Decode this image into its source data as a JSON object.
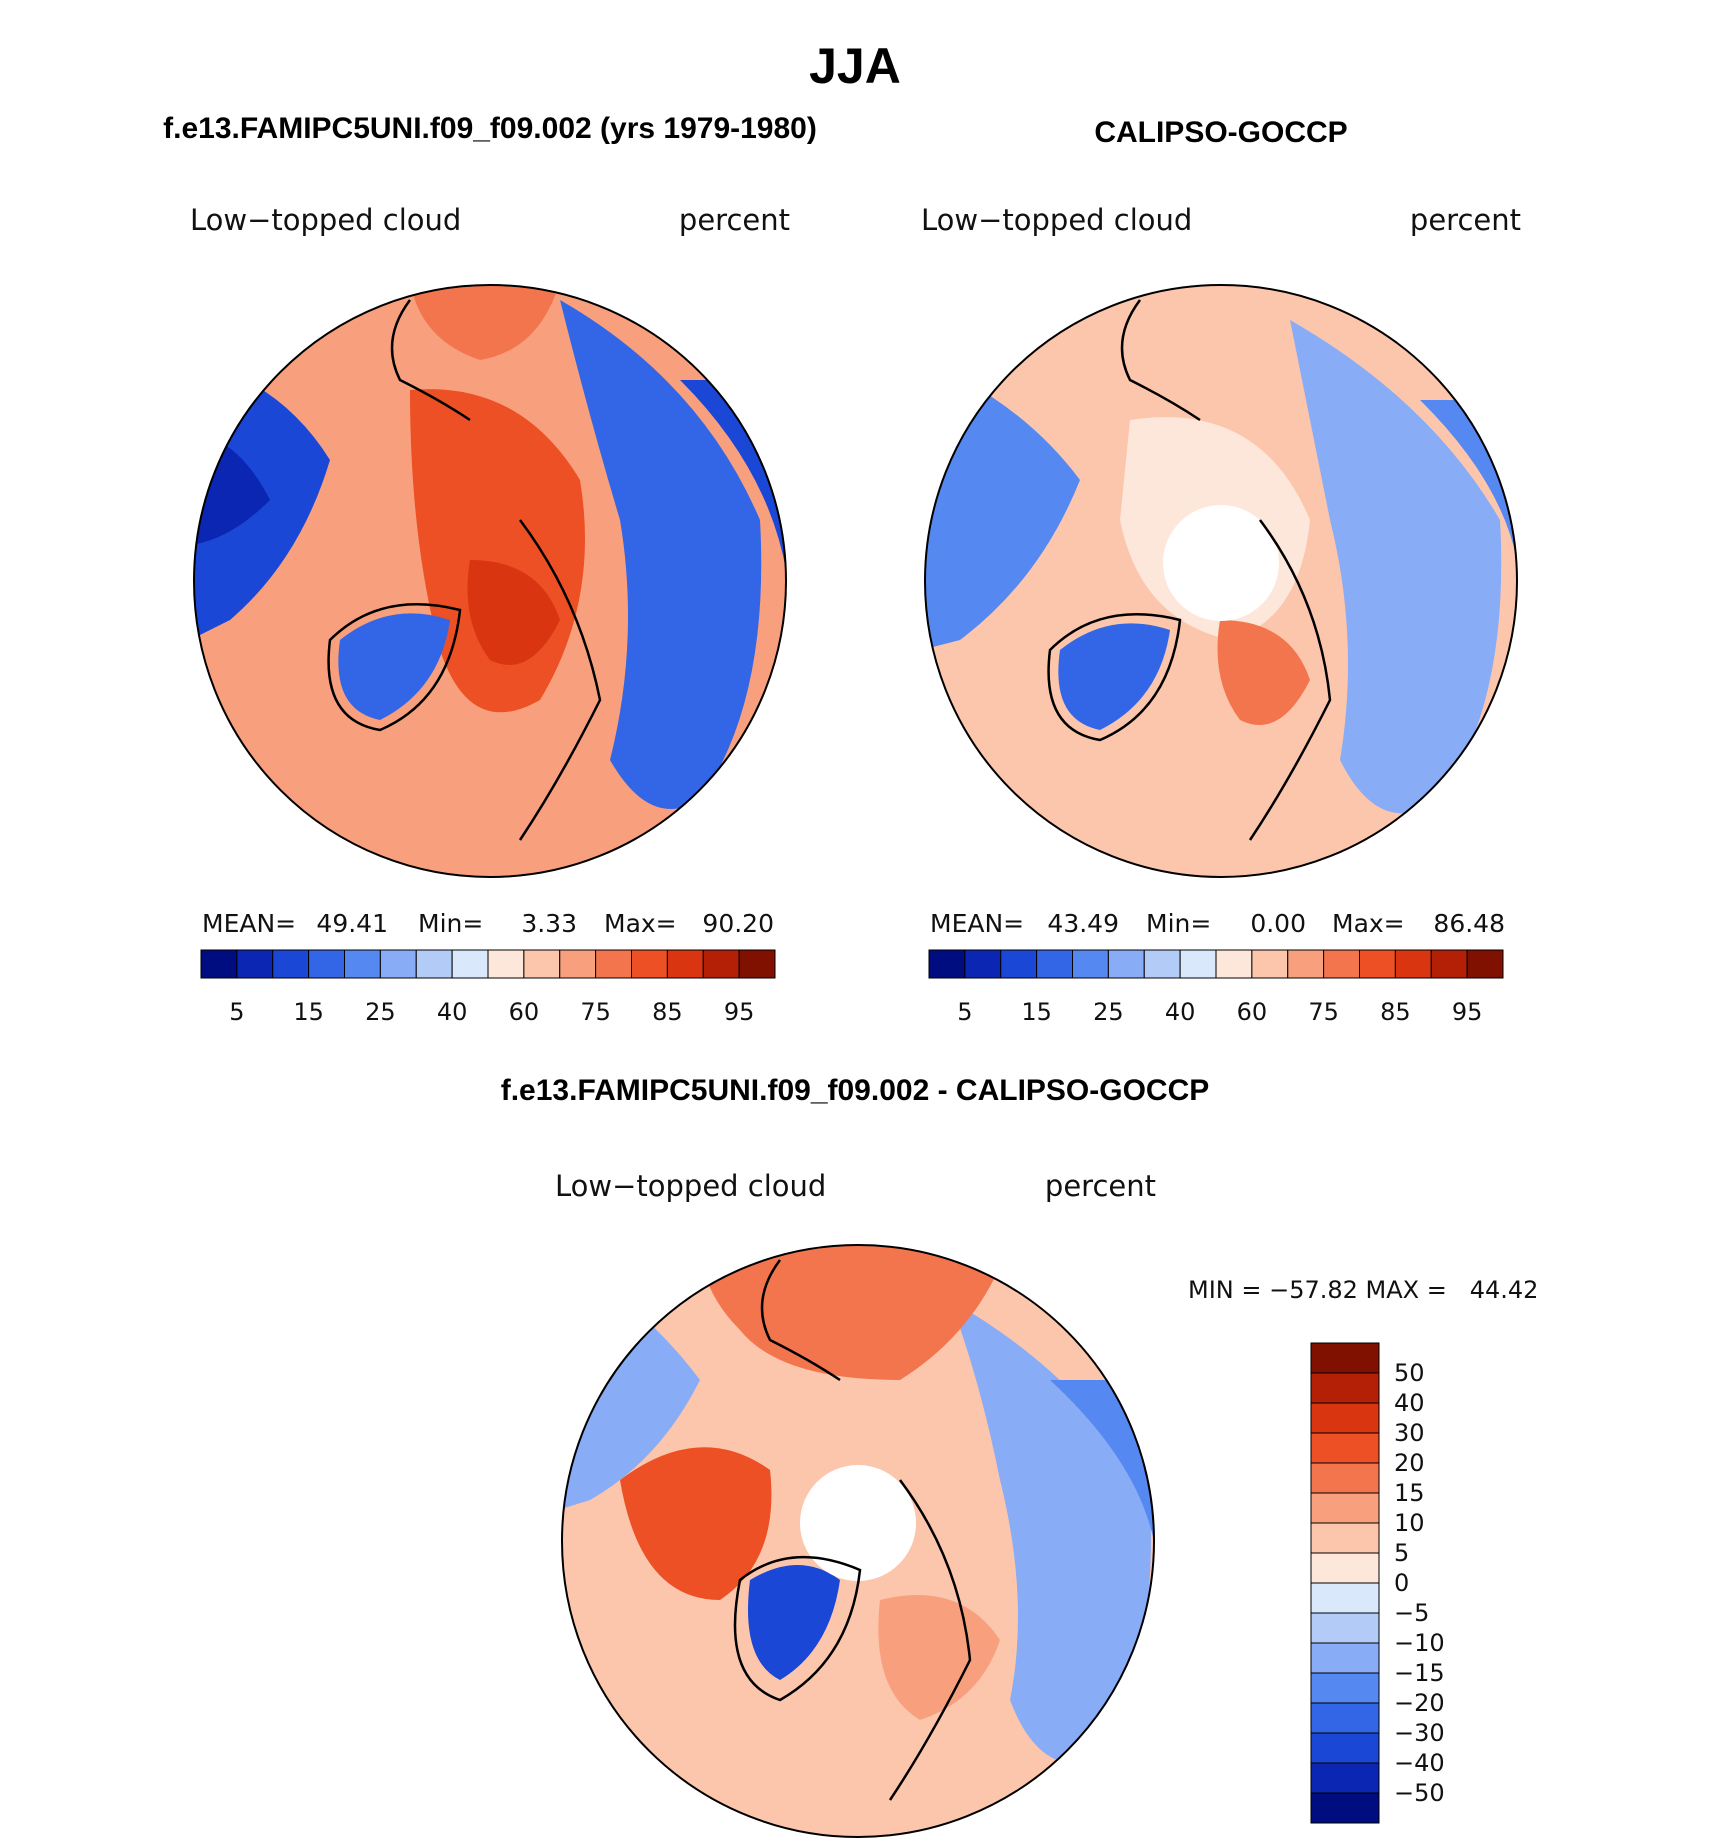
{
  "season": "JJA",
  "palette": [
    "#000d80",
    "#0a26b3",
    "#1a47d6",
    "#3366e6",
    "#5588f0",
    "#88acf5",
    "#b3ccf7",
    "#d9e8fa",
    "#fde6da",
    "#fcc6ad",
    "#f8a07d",
    "#f3754e",
    "#ec5024",
    "#d93510",
    "#b32005",
    "#801000"
  ],
  "land_color": "#000000",
  "panels": [
    {
      "heading": "f.e13.FAMIPC5UNI.f09_f09.002 (yrs 1979-1980)",
      "variable": "Low−topped cloud",
      "units": "percent",
      "stats": {
        "mean_label": "MEAN=",
        "mean": "49.41",
        "min_label": "Min=",
        "min": "3.33",
        "max_label": "Max=",
        "max": "90.20"
      },
      "colorbar_ticks": [
        "5",
        "15",
        "25",
        "40",
        "60",
        "75",
        "85",
        "95"
      ],
      "hole": false,
      "map_description": "pattern A"
    },
    {
      "heading": "CALIPSO-GOCCP",
      "variable": "Low−topped cloud",
      "units": "percent",
      "stats": {
        "mean_label": "MEAN=",
        "mean": "43.49",
        "min_label": "Min=",
        "min": "0.00",
        "max_label": "Max=",
        "max": "86.48"
      },
      "colorbar_ticks": [
        "5",
        "15",
        "25",
        "40",
        "60",
        "75",
        "85",
        "95"
      ],
      "hole": true,
      "map_description": "pattern B"
    }
  ],
  "difference": {
    "heading": "f.e13.FAMIPC5UNI.f09_f09.002 - CALIPSO-GOCCP",
    "variable": "Low−topped cloud",
    "units": "percent",
    "minmax": "MIN = −57.82 MAX =   44.42",
    "colorbar_ticks": [
      "50",
      "40",
      "30",
      "20",
      "15",
      "10",
      "5",
      "0",
      "−5",
      "−10",
      "−15",
      "−20",
      "−30",
      "−40",
      "−50"
    ],
    "hole": true
  }
}
